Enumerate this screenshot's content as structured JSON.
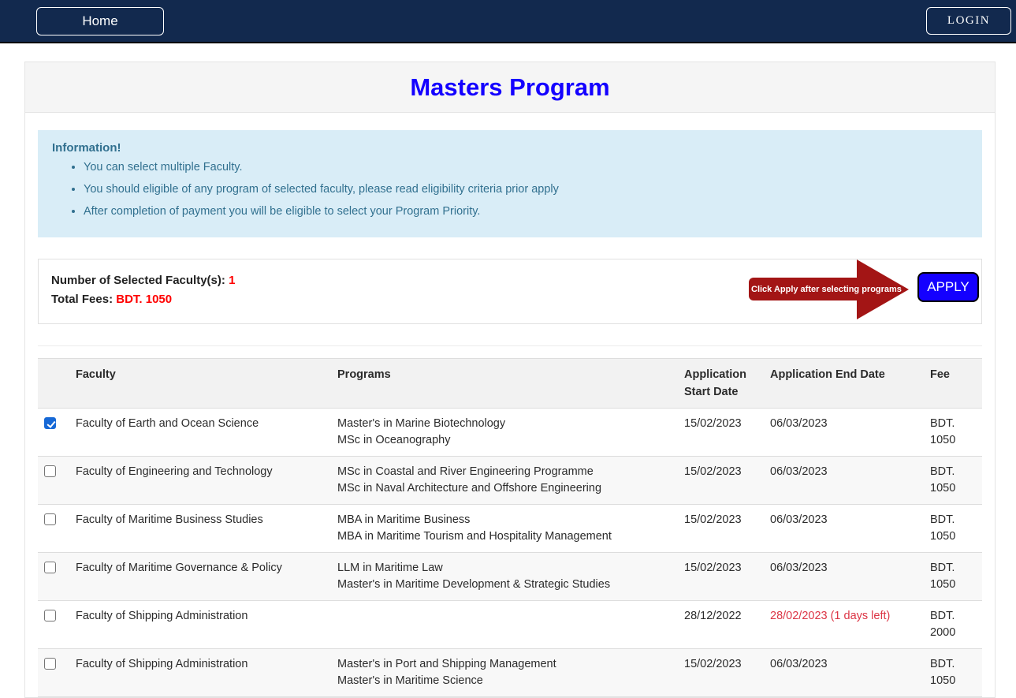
{
  "navbar": {
    "home_label": "Home",
    "login_label": "LOGIN"
  },
  "page": {
    "title": "Masters Program"
  },
  "info": {
    "heading": "Information!",
    "bullets": [
      "You can select multiple Faculty.",
      "You should eligible of any program of selected faculty, please read eligibility criteria prior apply",
      "After completion of payment you will be eligible to select your Program Priority."
    ]
  },
  "summary": {
    "selected_label": "Number of Selected Faculty(s):",
    "selected_value": "1",
    "fees_label": "Total Fees:",
    "fees_value": "BDT. 1050",
    "arrow_note": "Click Apply after selecting programs",
    "apply_label": "APPLY"
  },
  "table": {
    "headers": [
      "",
      "Faculty",
      "Programs",
      "Application Start Date",
      "Application End Date",
      "Fee"
    ],
    "rows": [
      {
        "checked": true,
        "faculty": "Faculty of Earth and Ocean Science",
        "programs": [
          "Master's in Marine Biotechnology",
          "MSc in Oceanography"
        ],
        "start": "15/02/2023",
        "end": "06/03/2023",
        "end_alert": false,
        "fee": "BDT. 1050"
      },
      {
        "checked": false,
        "faculty": "Faculty of Engineering and Technology",
        "programs": [
          "MSc in Coastal and River Engineering Programme",
          "MSc in Naval Architecture and Offshore Engineering"
        ],
        "start": "15/02/2023",
        "end": "06/03/2023",
        "end_alert": false,
        "fee": "BDT. 1050"
      },
      {
        "checked": false,
        "faculty": "Faculty of Maritime Business Studies",
        "programs": [
          "MBA in Maritime Business",
          "MBA in Maritime Tourism and Hospitality Management"
        ],
        "start": "15/02/2023",
        "end": "06/03/2023",
        "end_alert": false,
        "fee": "BDT. 1050"
      },
      {
        "checked": false,
        "faculty": "Faculty of Maritime Governance & Policy",
        "programs": [
          "LLM in Maritime Law",
          "Master's in Maritime Development & Strategic Studies"
        ],
        "start": "15/02/2023",
        "end": "06/03/2023",
        "end_alert": false,
        "fee": "BDT. 1050"
      },
      {
        "checked": false,
        "faculty": "Faculty of Shipping Administration",
        "programs": [],
        "start": "28/12/2022",
        "end": "28/02/2023 (1 days left)",
        "end_alert": true,
        "fee": "BDT. 2000"
      },
      {
        "checked": false,
        "faculty": "Faculty of Shipping Administration",
        "programs": [
          "Master's in Port and Shipping Management",
          "Master's in Maritime Science"
        ],
        "start": "15/02/2023",
        "end": "06/03/2023",
        "end_alert": false,
        "fee": "BDT. 1050"
      }
    ]
  },
  "colors": {
    "navy": "#12294e",
    "title_blue": "#1400ff",
    "apply_blue": "#1400ff",
    "arrow_red": "#a31515",
    "value_red": "#ff0000",
    "alert_red": "#dc3545",
    "info_bg": "#d9edf7",
    "info_text": "#31708f"
  }
}
